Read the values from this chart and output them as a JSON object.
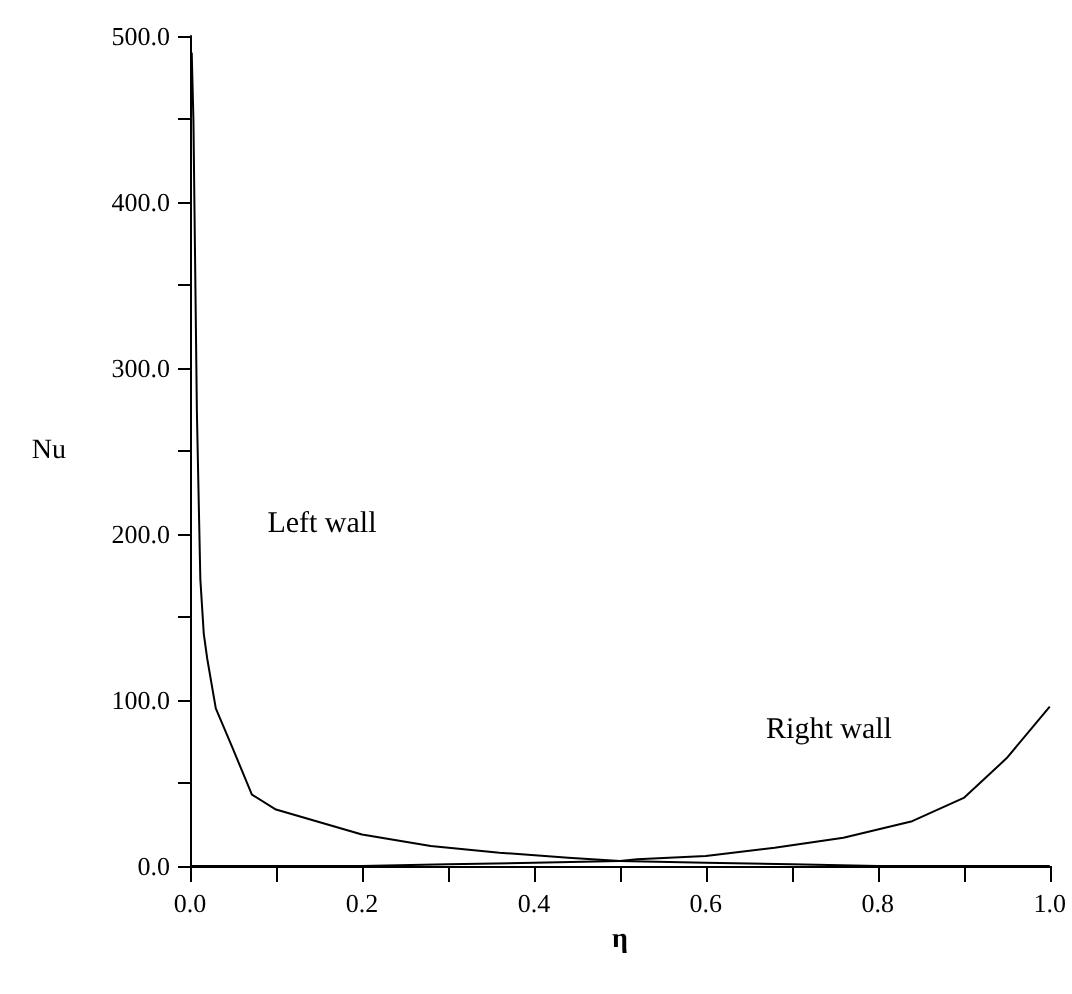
{
  "chart_data": {
    "type": "line",
    "xlabel": "η",
    "ylabel": "Nu",
    "xlim": [
      0,
      1
    ],
    "ylim": [
      0,
      500
    ],
    "xticks": [
      {
        "value": 0,
        "label": "0.0"
      },
      {
        "value": 0.1,
        "label": null
      },
      {
        "value": 0.2,
        "label": "0.2"
      },
      {
        "value": 0.3,
        "label": null
      },
      {
        "value": 0.4,
        "label": "0.4"
      },
      {
        "value": 0.5,
        "label": null
      },
      {
        "value": 0.6,
        "label": "0.6"
      },
      {
        "value": 0.7,
        "label": null
      },
      {
        "value": 0.8,
        "label": "0.8"
      },
      {
        "value": 0.9,
        "label": null
      },
      {
        "value": 1,
        "label": "1.0"
      }
    ],
    "yticks": [
      {
        "value": 0,
        "label": "0.0"
      },
      {
        "value": 50,
        "label": null
      },
      {
        "value": 100,
        "label": "100.0"
      },
      {
        "value": 150,
        "label": null
      },
      {
        "value": 200,
        "label": "200.0"
      },
      {
        "value": 250,
        "label": null
      },
      {
        "value": 300,
        "label": "300.0"
      },
      {
        "value": 350,
        "label": null
      },
      {
        "value": 400,
        "label": "400.0"
      },
      {
        "value": 450,
        "label": null
      },
      {
        "value": 500,
        "label": "500.0"
      }
    ],
    "grid": false,
    "legend": false,
    "marker": "none",
    "line_style": "solid",
    "series": [
      {
        "name": "Left wall",
        "color": "#000000",
        "x": [
          0.002,
          0.004,
          0.008,
          0.012,
          0.016,
          0.02,
          0.03,
          0.048,
          0.072,
          0.1,
          0.12,
          0.2,
          0.28,
          0.36,
          0.44,
          0.5,
          0.6,
          0.7,
          0.8,
          0.9,
          1.0
        ],
        "values": [
          490,
          449,
          274,
          173,
          140,
          125,
          95,
          73,
          43,
          34,
          31,
          19,
          12,
          8,
          5,
          3,
          2,
          1,
          0,
          0,
          0
        ]
      },
      {
        "name": "Right wall",
        "color": "#000000",
        "x": [
          0,
          0.2,
          0.3,
          0.4,
          0.5,
          0.52,
          0.6,
          0.68,
          0.76,
          0.84,
          0.9,
          0.95,
          1.0
        ],
        "values": [
          0,
          0,
          1,
          2,
          3,
          4,
          6,
          11,
          17,
          27,
          41,
          65,
          96
        ]
      }
    ]
  }
}
